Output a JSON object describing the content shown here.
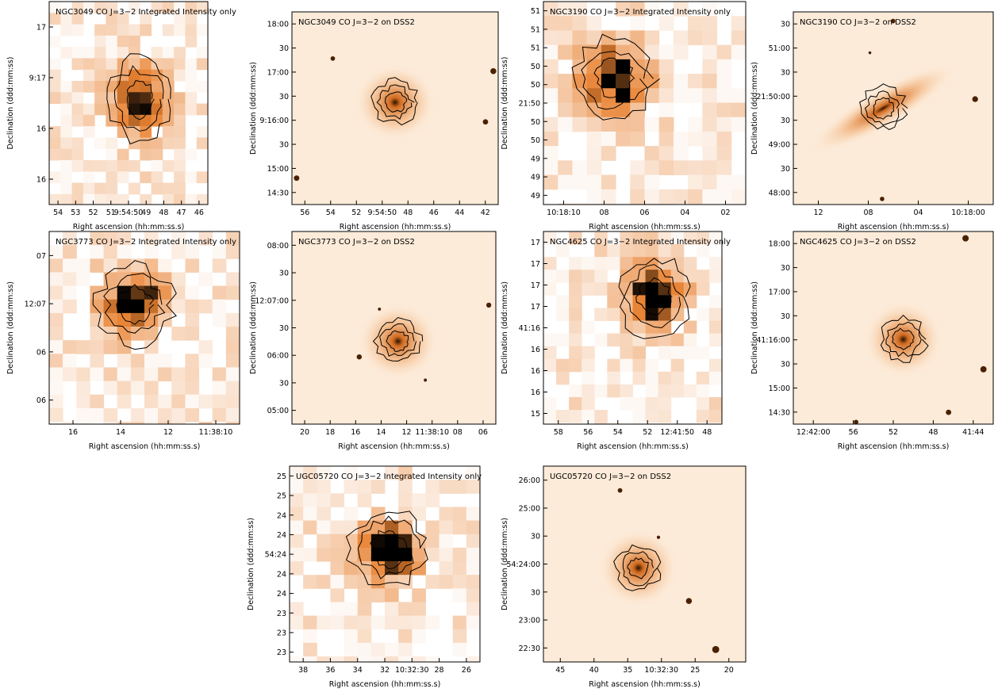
{
  "panels": [
    {
      "title": "NGC3049 CO J=3−2 Integrated Intensity only",
      "xlabel": "Right ascension (hh:mm:ss.s)",
      "ylabel": "Declination (ddd:mm:ss)",
      "xticks": [
        "54",
        "53",
        "52",
        "51",
        "9:54:50",
        "49",
        "48",
        "47",
        "46"
      ],
      "yticks": [
        "17",
        "9:17",
        "16",
        "16"
      ]
    },
    {
      "title": "NGC3049 CO J=3−2 on DSS2",
      "xlabel": "Right ascension (hh:mm:ss.s)",
      "ylabel": "Declination (ddd:mm:ss)",
      "xticks": [
        "56",
        "54",
        "52",
        "9:54:50",
        "48",
        "46",
        "44",
        "42"
      ],
      "yticks": [
        "18:00",
        "30",
        "17:00",
        "30",
        "9:16:00",
        "30",
        "15:00",
        "14:30"
      ]
    },
    {
      "title": "NGC3190 CO J=3−2 Integrated Intensity only",
      "xlabel": "Right ascension (hh:mm:ss.s)",
      "ylabel": "Declination (ddd:mm:ss)",
      "xticks": [
        "10:18:10",
        "08",
        "06",
        "04",
        "02"
      ],
      "yticks": [
        "51",
        "51",
        "51",
        "50",
        "50",
        "21:50",
        "50",
        "50",
        "49",
        "49",
        "49"
      ]
    },
    {
      "title": "NGC3190 CO J=3−2 on DSS2",
      "xlabel": "Right ascension (hh:mm:ss.s)",
      "ylabel": "Declination (ddd:mm:ss)",
      "xticks": [
        "12",
        "08",
        "04",
        "10:18:00"
      ],
      "yticks": [
        "30",
        "51:00",
        "30",
        "21:50:00",
        "30",
        "49:00",
        "30",
        "48:00"
      ]
    },
    {
      "title": "NGC3773 CO J=3−2 Integrated Intensity only",
      "xlabel": "Right ascension (hh:mm:ss.s)",
      "ylabel": "Declination (ddd:mm:ss)",
      "xticks": [
        "16",
        "14",
        "12",
        "11:38:10"
      ],
      "yticks": [
        "07",
        "12:07",
        "06",
        "06"
      ]
    },
    {
      "title": "NGC3773 CO J=3−2 on DSS2",
      "xlabel": "Right ascension (hh:mm:ss.s)",
      "ylabel": "Declination (ddd:mm:ss)",
      "xticks": [
        "20",
        "18",
        "16",
        "14",
        "12",
        "11:38:10",
        "08",
        "06"
      ],
      "yticks": [
        "08:00",
        "30",
        "12:07:00",
        "30",
        "06:00",
        "30",
        "05:00"
      ]
    },
    {
      "title": "NGC4625 CO J=3−2 Integrated Intensity only",
      "xlabel": "Right ascension (hh:mm:ss.s)",
      "ylabel": "Declination (ddd:mm:ss)",
      "xticks": [
        "58",
        "56",
        "54",
        "52",
        "12:41:50",
        "48"
      ],
      "yticks": [
        "17",
        "17",
        "17",
        "17",
        "41:16",
        "16",
        "16",
        "16",
        "15"
      ]
    },
    {
      "title": "NGC4625 CO J=3−2 on DSS2",
      "xlabel": "Right ascension (hh:mm:ss.s)",
      "ylabel": "Declination (ddd:mm:ss)",
      "xticks": [
        "12:42:00",
        "56",
        "52",
        "48",
        "41:44"
      ],
      "yticks": [
        "18:00",
        "30",
        "17:00",
        "30",
        "41:16:00",
        "30",
        "15:00",
        "14:30"
      ]
    },
    {
      "title": "UGC05720 CO J=3−2 Integrated Intensity only",
      "xlabel": "Right ascension (hh:mm:ss.s)",
      "ylabel": "Declination (ddd:mm:ss)",
      "xticks": [
        "38",
        "36",
        "34",
        "32",
        "10:32:30",
        "28",
        "26"
      ],
      "yticks": [
        "25",
        "25",
        "24",
        "24",
        "54:24",
        "24",
        "24",
        "23",
        "23",
        "23"
      ]
    },
    {
      "title": "UGC05720 CO J=3−2 on DSS2",
      "xlabel": "Right ascension (hh:mm:ss.s)",
      "ylabel": "Declination (ddd:mm:ss)",
      "xticks": [
        "45",
        "40",
        "35",
        "10:32:30",
        "25",
        "20"
      ],
      "yticks": [
        "26:00",
        "25:00",
        "30",
        "54:24:00",
        "30",
        "23:00",
        "22:30"
      ]
    }
  ]
}
